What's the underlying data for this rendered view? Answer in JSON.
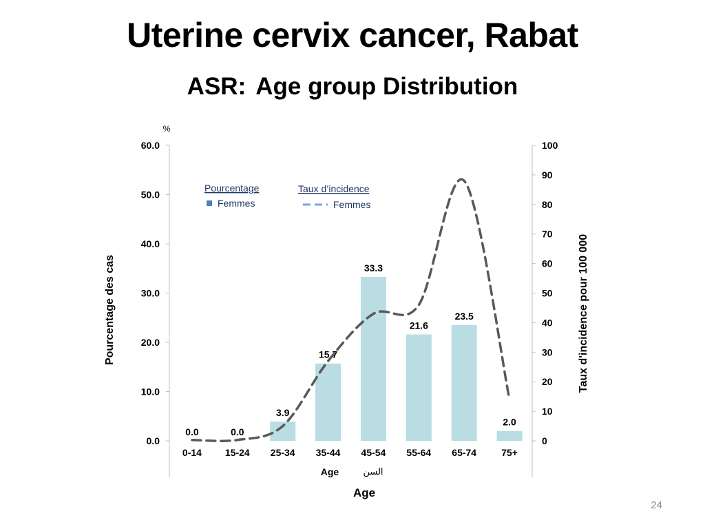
{
  "slide": {
    "title": "Uterine cervix cancer, Rabat",
    "subtitle_prefix": "ASR:",
    "subtitle_main": "Age group Distribution",
    "page_number": "24"
  },
  "colors": {
    "bar": "#b9dde3",
    "line": "#595959",
    "legend_bar": "#4f81bd",
    "legend_line": "#7ba3d6",
    "axis": "#bfbfbf"
  },
  "chart_data": {
    "type": "bar",
    "categories": [
      "0-14",
      "15-24",
      "25-34",
      "35-44",
      "45-54",
      "55-64",
      "65-74",
      "75+"
    ],
    "series": [
      {
        "name": "Femmes",
        "legend_group": "Pourcentage",
        "chart_type": "bar",
        "axis": "left",
        "values": [
          0.0,
          0.0,
          3.9,
          15.7,
          33.3,
          21.6,
          23.5,
          2.0
        ],
        "labels": [
          "0.0",
          "0.0",
          "3.9",
          "15.7",
          "33.3",
          "21.6",
          "23.5",
          "2.0"
        ]
      },
      {
        "name": "Femmes",
        "legend_group": "Taux d’incidence",
        "chart_type": "line",
        "style": "dashed",
        "axis": "right",
        "values": [
          0.3,
          0.3,
          5,
          27,
          43,
          46,
          88,
          14
        ]
      }
    ],
    "y_left": {
      "label": "Pourcentage des cas",
      "unit_label": "%",
      "ylim": [
        0,
        60
      ],
      "ticks": [
        "0.0",
        "10.0",
        "20.0",
        "30.0",
        "40.0",
        "50.0",
        "60.0"
      ]
    },
    "y_right": {
      "label": "Taux d'incidence pour 100 000",
      "ylim": [
        0,
        100
      ],
      "ticks": [
        "0",
        "10",
        "20",
        "30",
        "40",
        "50",
        "60",
        "70",
        "80",
        "90",
        "100"
      ]
    },
    "x_sub_label_latin": "Age",
    "x_sub_label_arabic": "السن",
    "xlabel": "Age",
    "legend": {
      "placement": "top-left",
      "bar_header": "Pourcentage",
      "bar_entry": "Femmes",
      "line_header": "Taux d’incidence",
      "line_entry": "Femmes"
    },
    "grid": false
  }
}
